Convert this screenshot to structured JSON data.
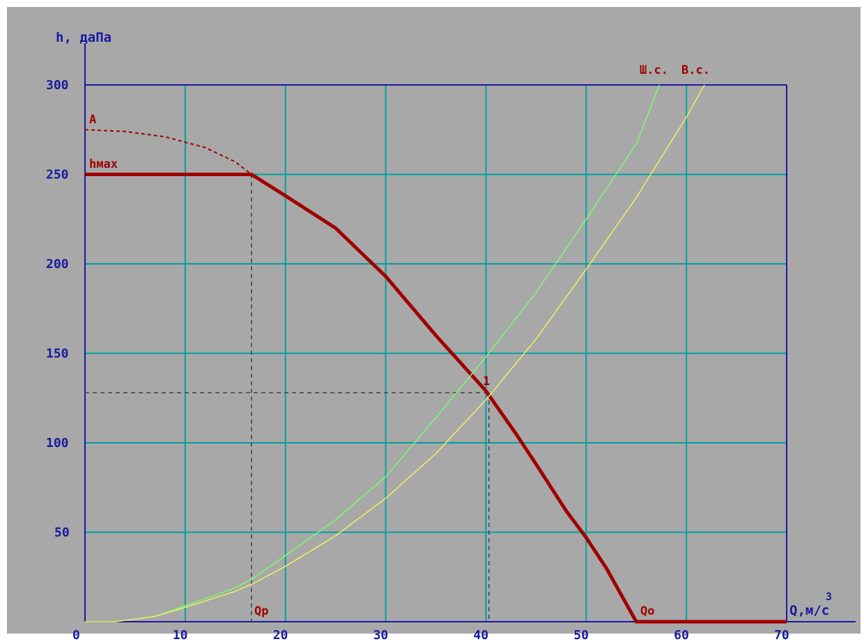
{
  "chart_data": {
    "type": "line",
    "title": "",
    "xlabel": "Q,м/с",
    "xlabel_superscript": "3",
    "ylabel": "h, даПа",
    "xlim": [
      0,
      70
    ],
    "ylim": [
      0,
      300
    ],
    "x_ticks": [
      "0",
      "10",
      "20",
      "30",
      "40",
      "50",
      "60",
      "70"
    ],
    "y_ticks": [
      "50",
      "100",
      "150",
      "200",
      "250",
      "300"
    ],
    "grid": true,
    "colors": {
      "panel": "#a8a8a8",
      "frame": "#1a1aa0",
      "grid": "#00a0a0",
      "fan_curve": "#a00000",
      "network_sh": "#7cfc70",
      "network_v": "#f0f060",
      "guides": "#404040"
    },
    "annotations": {
      "A": "A",
      "hmax": "hмax",
      "Qp": "Qр",
      "Qo": "Qо",
      "point1": "1",
      "sh_label": "Ш.с.",
      "v_label": "В.с."
    },
    "series": [
      {
        "id": "fan_full_theoretical",
        "style": "dashed",
        "color": "#a00000",
        "points": [
          [
            0,
            275
          ],
          [
            4,
            274
          ],
          [
            8,
            271
          ],
          [
            12,
            265
          ],
          [
            15,
            257
          ],
          [
            16.6,
            250
          ]
        ]
      },
      {
        "id": "fan_operating",
        "style": "thick",
        "color": "#a00000",
        "points": [
          [
            0,
            250
          ],
          [
            16.6,
            250
          ],
          [
            20,
            238
          ],
          [
            25,
            220
          ],
          [
            30,
            193
          ],
          [
            35,
            160
          ],
          [
            40,
            129
          ],
          [
            43,
            105
          ],
          [
            45,
            88
          ],
          [
            48,
            62
          ],
          [
            50,
            47
          ],
          [
            52,
            30
          ],
          [
            55,
            0
          ],
          [
            70,
            0
          ]
        ]
      },
      {
        "id": "network_sh",
        "color": "#7cfc70",
        "points": [
          [
            0,
            0
          ],
          [
            3,
            0
          ],
          [
            7,
            3
          ],
          [
            10,
            9
          ],
          [
            15,
            19
          ],
          [
            17,
            25
          ],
          [
            20,
            37
          ],
          [
            25,
            57
          ],
          [
            30,
            81
          ],
          [
            35,
            114
          ],
          [
            40,
            148
          ],
          [
            45,
            184
          ],
          [
            50,
            225
          ],
          [
            55,
            267
          ],
          [
            57.3,
            300
          ]
        ]
      },
      {
        "id": "network_v",
        "color": "#f0f060",
        "points": [
          [
            0,
            0
          ],
          [
            3,
            0
          ],
          [
            7,
            3
          ],
          [
            10,
            8
          ],
          [
            15,
            17
          ],
          [
            17,
            22
          ],
          [
            20,
            31
          ],
          [
            25,
            48
          ],
          [
            30,
            69
          ],
          [
            35,
            94
          ],
          [
            40,
            124
          ],
          [
            45,
            158
          ],
          [
            50,
            197
          ],
          [
            55,
            237
          ],
          [
            60,
            282
          ],
          [
            61.8,
            300
          ]
        ]
      }
    ],
    "guides": {
      "Qp_x": 16.6,
      "Qp_y": 250,
      "point1_x": 40.3,
      "point1_y": 128
    }
  }
}
